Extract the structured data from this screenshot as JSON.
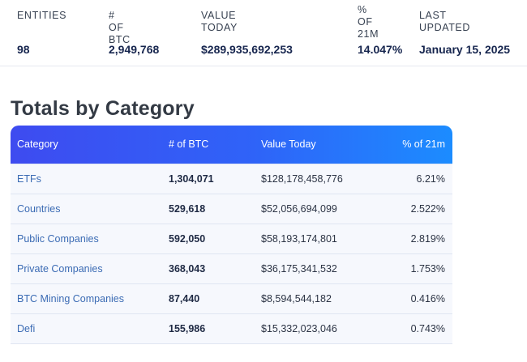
{
  "summary": {
    "entities": {
      "label": "ENTITIES",
      "value": "98"
    },
    "btc": {
      "label": "# OF BTC",
      "value": "2,949,768"
    },
    "value_today": {
      "label": "VALUE TODAY",
      "value": "$289,935,692,253"
    },
    "pct_21m": {
      "label_line1": "% OF",
      "label_line2": "21M",
      "value": "14.047%"
    },
    "last_updated": {
      "label": "LAST UPDATED",
      "value": "January 15, 2025"
    }
  },
  "section": {
    "title": "Totals by Category"
  },
  "table": {
    "headers": {
      "category": "Category",
      "btc": "# of BTC",
      "value": "Value Today",
      "pct": "% of 21m"
    },
    "rows": [
      {
        "category": "ETFs",
        "btc": "1,304,071",
        "value": "$128,178,458,776",
        "pct": "6.21%"
      },
      {
        "category": "Countries",
        "btc": "529,618",
        "value": "$52,056,694,099",
        "pct": "2.522%"
      },
      {
        "category": "Public Companies",
        "btc": "592,050",
        "value": "$58,193,174,801",
        "pct": "2.819%"
      },
      {
        "category": "Private Companies",
        "btc": "368,043",
        "value": "$36,175,341,532",
        "pct": "1.753%"
      },
      {
        "category": "BTC Mining Companies",
        "btc": "87,440",
        "value": "$8,594,544,182",
        "pct": "0.416%"
      },
      {
        "category": "Defi",
        "btc": "155,986",
        "value": "$15,332,023,046",
        "pct": "0.743%"
      }
    ]
  },
  "colors": {
    "header_gradient_start": "#3e4bf0",
    "header_gradient_end": "#1c8cff",
    "category_link": "#3b6bb4",
    "stat_value": "#16254e",
    "row_background": "#f6f8fd"
  }
}
